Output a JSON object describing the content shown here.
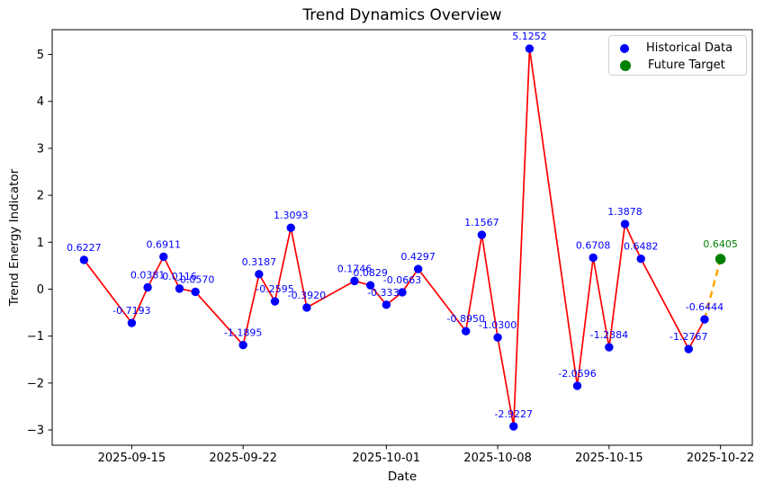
{
  "figure": {
    "title": "Trend Dynamics Overview",
    "xlabel": "Date",
    "ylabel": "Trend Energy Indicator"
  },
  "legend": {
    "items": [
      {
        "label": "Historical Data",
        "color": "#0000ff",
        "dot_size": 10
      },
      {
        "label": "Future Target",
        "color": "#008000",
        "dot_size": 12
      }
    ]
  },
  "chart_data": {
    "type": "line",
    "title": "Trend Dynamics Overview",
    "xlabel": "Date",
    "ylabel": "Trend Energy Indicator",
    "grid": false,
    "legend_position": "upper right",
    "x_tick_labels": [
      "2025-09-15",
      "2025-09-22",
      "2025-10-01",
      "2025-10-08",
      "2025-10-15",
      "2025-10-22"
    ],
    "y_ticks": [
      -3,
      -2,
      -1,
      0,
      1,
      2,
      3,
      4,
      5
    ],
    "x_range": [
      "2025-09-10",
      "2025-10-24"
    ],
    "y_range": [
      -3.325,
      5.528
    ],
    "annotation_color": "#0000ff",
    "future_annotation_color": "#008000",
    "line_color": "#ff0000",
    "connector_color": "#ffa500",
    "series": [
      {
        "name": "Historical Data",
        "marker_color": "#0000ff",
        "points": [
          {
            "date": "2025-09-12",
            "value": 0.6227,
            "label": "0.6227"
          },
          {
            "date": "2025-09-15",
            "value": -0.7193,
            "label": "-0.7193"
          },
          {
            "date": "2025-09-16",
            "value": 0.0381,
            "label": "0.0381"
          },
          {
            "date": "2025-09-17",
            "value": 0.6911,
            "label": "0.6911"
          },
          {
            "date": "2025-09-18",
            "value": 0.0116,
            "label": "0.0116"
          },
          {
            "date": "2025-09-19",
            "value": -0.057,
            "label": "-0.0570"
          },
          {
            "date": "2025-09-22",
            "value": -1.1895,
            "label": "-1.1895"
          },
          {
            "date": "2025-09-23",
            "value": 0.3187,
            "label": "0.3187"
          },
          {
            "date": "2025-09-24",
            "value": -0.2595,
            "label": "-0.2595"
          },
          {
            "date": "2025-09-25",
            "value": 1.3093,
            "label": "1.3093"
          },
          {
            "date": "2025-09-26",
            "value": -0.392,
            "label": "-0.3920"
          },
          {
            "date": "2025-09-29",
            "value": 0.1746,
            "label": "0.1746"
          },
          {
            "date": "2025-09-30",
            "value": 0.0829,
            "label": "0.0829"
          },
          {
            "date": "2025-10-01",
            "value": -0.333,
            "label": "-0.3330"
          },
          {
            "date": "2025-10-02",
            "value": -0.0663,
            "label": "-0.0663"
          },
          {
            "date": "2025-10-03",
            "value": 0.4297,
            "label": "0.4297"
          },
          {
            "date": "2025-10-06",
            "value": -0.895,
            "label": "-0.8950"
          },
          {
            "date": "2025-10-07",
            "value": 1.1567,
            "label": "1.1567"
          },
          {
            "date": "2025-10-08",
            "value": -1.03,
            "label": "-1.0300"
          },
          {
            "date": "2025-10-09",
            "value": -2.9227,
            "label": "-2.9227"
          },
          {
            "date": "2025-10-10",
            "value": 5.1252,
            "label": "5.1252"
          },
          {
            "date": "2025-10-13",
            "value": -2.0596,
            "label": "-2.0596"
          },
          {
            "date": "2025-10-14",
            "value": 0.6708,
            "label": "0.6708"
          },
          {
            "date": "2025-10-15",
            "value": -1.2384,
            "label": "-1.2384"
          },
          {
            "date": "2025-10-16",
            "value": 1.3878,
            "label": "1.3878"
          },
          {
            "date": "2025-10-17",
            "value": 0.6482,
            "label": "0.6482"
          },
          {
            "date": "2025-10-20",
            "value": -1.2767,
            "label": "-1.2767"
          },
          {
            "date": "2025-10-21",
            "value": -0.6444,
            "label": "-0.6444"
          }
        ]
      },
      {
        "name": "Future Target",
        "marker_color": "#008000",
        "points": [
          {
            "date": "2025-10-22",
            "value": 0.6405,
            "label": "0.6405"
          }
        ]
      }
    ]
  }
}
